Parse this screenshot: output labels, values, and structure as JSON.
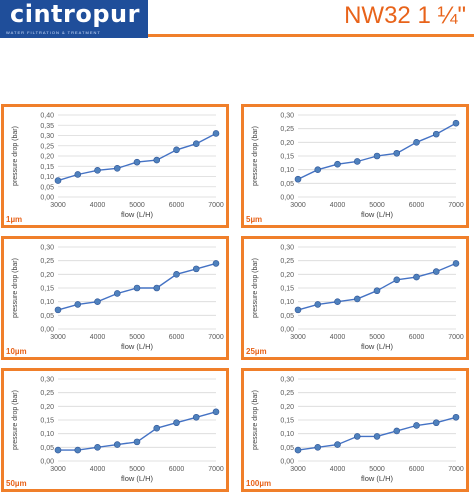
{
  "header": {
    "logo": "cintropur",
    "tagline": "WATER FILTRATION & TREATMENT",
    "title": "NW32 1 ¼\""
  },
  "colors": {
    "brand_blue": "#1f4e9a",
    "accent_orange": "#f07f2a",
    "line": "#4472c4",
    "marker": "#4f81bd"
  },
  "chart_data": [
    {
      "type": "line",
      "label": "1µm",
      "xlabel": "flow (L/H)",
      "ylabel": "pressure drop (bar)",
      "x": [
        3000,
        3500,
        4000,
        4500,
        5000,
        5500,
        6000,
        6500,
        7000
      ],
      "y": [
        0.08,
        0.11,
        0.13,
        0.14,
        0.17,
        0.18,
        0.23,
        0.26,
        0.31
      ],
      "xticks": [
        "3000",
        "4000",
        "5000",
        "6000",
        "7000"
      ],
      "yticks": [
        "0,00",
        "0,05",
        "0,10",
        "0,15",
        "0,20",
        "0,25",
        "0,30",
        "0,35",
        "0,40"
      ],
      "ylim": [
        0,
        0.4
      ],
      "xlim": [
        3000,
        7000
      ],
      "grid": true
    },
    {
      "type": "line",
      "label": "5µm",
      "xlabel": "flow (L/H)",
      "ylabel": "pressure drop (bar)",
      "x": [
        3000,
        3500,
        4000,
        4500,
        5000,
        5500,
        6000,
        6500,
        7000
      ],
      "y": [
        0.065,
        0.1,
        0.12,
        0.13,
        0.15,
        0.16,
        0.2,
        0.23,
        0.27
      ],
      "xticks": [
        "3000",
        "4000",
        "5000",
        "6000",
        "7000"
      ],
      "yticks": [
        "0,00",
        "0,05",
        "0,10",
        "0,15",
        "0,20",
        "0,25",
        "0,30"
      ],
      "ylim": [
        0,
        0.3
      ],
      "xlim": [
        3000,
        7000
      ],
      "grid": true
    },
    {
      "type": "line",
      "label": "10µm",
      "xlabel": "flow (L/H)",
      "ylabel": "pressure drop (bar)",
      "x": [
        3000,
        3500,
        4000,
        4500,
        5000,
        5500,
        6000,
        6500,
        7000
      ],
      "y": [
        0.07,
        0.09,
        0.1,
        0.13,
        0.15,
        0.15,
        0.2,
        0.22,
        0.24
      ],
      "xticks": [
        "3000",
        "4000",
        "5000",
        "6000",
        "7000"
      ],
      "yticks": [
        "0,00",
        "0,05",
        "0,10",
        "0,15",
        "0,20",
        "0,25",
        "0,30"
      ],
      "ylim": [
        0,
        0.3
      ],
      "xlim": [
        3000,
        7000
      ],
      "grid": true
    },
    {
      "type": "line",
      "label": "25µm",
      "xlabel": "flow (L/H)",
      "ylabel": "pressure drop (bar)",
      "x": [
        3000,
        3500,
        4000,
        4500,
        5000,
        5500,
        6000,
        6500,
        7000
      ],
      "y": [
        0.07,
        0.09,
        0.1,
        0.11,
        0.14,
        0.18,
        0.19,
        0.21,
        0.24
      ],
      "xticks": [
        "3000",
        "4000",
        "5000",
        "6000",
        "7000"
      ],
      "yticks": [
        "0,00",
        "0,05",
        "0,10",
        "0,15",
        "0,20",
        "0,25",
        "0,30"
      ],
      "ylim": [
        0,
        0.3
      ],
      "xlim": [
        3000,
        7000
      ],
      "grid": true
    },
    {
      "type": "line",
      "label": "50µm",
      "xlabel": "flow (L/H)",
      "ylabel": "pressure drop (bar)",
      "x": [
        3000,
        3500,
        4000,
        4500,
        5000,
        5500,
        6000,
        6500,
        7000
      ],
      "y": [
        0.04,
        0.04,
        0.05,
        0.06,
        0.07,
        0.12,
        0.14,
        0.16,
        0.18
      ],
      "xticks": [
        "3000",
        "4000",
        "5000",
        "6000",
        "7000"
      ],
      "yticks": [
        "0,00",
        "0,05",
        "0,10",
        "0,15",
        "0,20",
        "0,25",
        "0,30"
      ],
      "ylim": [
        0,
        0.3
      ],
      "xlim": [
        3000,
        7000
      ],
      "grid": true
    },
    {
      "type": "line",
      "label": "100µm",
      "xlabel": "flow (L/H)",
      "ylabel": "pressure drop (bar)",
      "x": [
        3000,
        3500,
        4000,
        4500,
        5000,
        5500,
        6000,
        6500,
        7000
      ],
      "y": [
        0.04,
        0.05,
        0.06,
        0.09,
        0.09,
        0.11,
        0.13,
        0.14,
        0.16
      ],
      "xticks": [
        "3000",
        "4000",
        "5000",
        "6000",
        "7000"
      ],
      "yticks": [
        "0,00",
        "0,05",
        "0,10",
        "0,15",
        "0,20",
        "0,25",
        "0,30"
      ],
      "ylim": [
        0,
        0.3
      ],
      "xlim": [
        3000,
        7000
      ],
      "grid": true
    }
  ]
}
